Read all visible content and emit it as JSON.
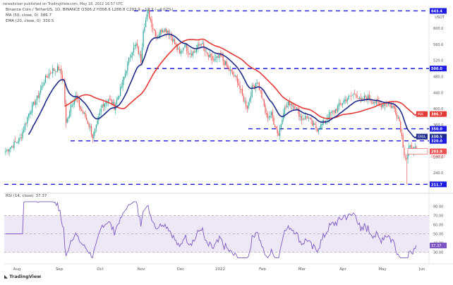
{
  "header": {
    "publisher_line": "rareadviser published on TradingView.com, May 18, 2022 16:57 UTC",
    "symbol_line": "Binance Coin / TetherUS, 1D, BINANCE  O306.2  H308.6  L288.8  C293.9  −12.3 (−4.02%)",
    "ma_label": "MA (50, close, 0)",
    "ma_value": "386.7",
    "ema_label": "EMA (20, close, 0)",
    "ema_value": "330.5",
    "quote_unit": "USDT"
  },
  "rsi": {
    "label": "RSI (14, close)",
    "value": "37.37",
    "levels": [
      "80.00",
      "70.00",
      "60.00",
      "50.00",
      "40.00",
      "30.00"
    ]
  },
  "footer": {
    "logo_text": "TradingView"
  },
  "colors": {
    "up": "#26a69a",
    "down": "#ef5350",
    "ema20": "#1e2a8a",
    "ma50": "#e53935",
    "rsi_line": "#7e57c2",
    "rsi_band": "#ede7f6",
    "level_line": "#1c1ce0"
  },
  "chart_data": {
    "type": "candlestick",
    "symbol": "BNBUSDT",
    "timeframe": "1D",
    "y_axis_ticks": [
      640.0,
      600.0,
      560.0,
      520.0,
      480.0,
      440.0,
      400.0,
      360.0,
      320.0,
      280.0,
      240.0,
      211.7
    ],
    "x_axis_ticks": [
      "Aug",
      "Sep",
      "Oct",
      "Nov",
      "Dec",
      "2022",
      "Feb",
      "Mar",
      "Apr",
      "May",
      "Jun"
    ],
    "price_labels": [
      {
        "text": "643.4",
        "kind": "level"
      },
      {
        "text": "500.0",
        "kind": "level"
      },
      {
        "text": "386.7",
        "kind": "ma50"
      },
      {
        "text": "350.0",
        "kind": "level"
      },
      {
        "text": "330.5",
        "kind": "ema20"
      },
      {
        "text": "320.0",
        "kind": "level"
      },
      {
        "text": "293.9",
        "kind": "last"
      },
      {
        "text": "211.7",
        "kind": "level"
      }
    ],
    "label_tags": [
      {
        "text": "MA",
        "for": "ma50"
      },
      {
        "text": "EMA",
        "for": "ema20"
      }
    ],
    "last_price_countdown": "00:03:07",
    "horizontal_levels": [
      643.4,
      500.0,
      350.0,
      320.0,
      211.7
    ],
    "ohlc_last": {
      "open": 306.2,
      "high": 308.6,
      "low": 288.8,
      "close": 293.9
    },
    "ma50_last": 386.7,
    "ema20_last": 330.5,
    "rsi_last": 37.37
  }
}
